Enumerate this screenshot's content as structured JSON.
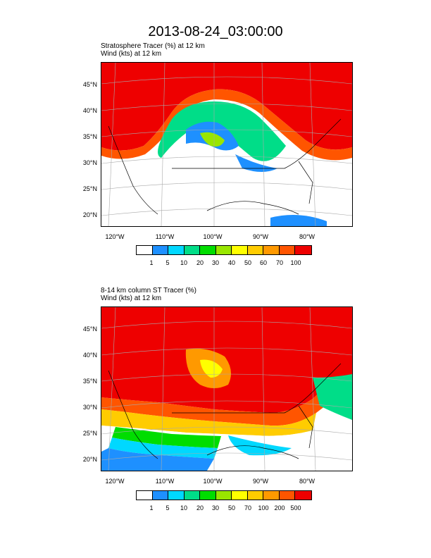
{
  "title": "2013-08-24_03:00:00",
  "panel1": {
    "line1": "Stratosphere Tracer   (%)     at   12 km",
    "line2": "Wind   (kts)     at   12 km",
    "colorbar": [
      "1",
      "5",
      "10",
      "20",
      "30",
      "40",
      "50",
      "60",
      "70",
      "100"
    ]
  },
  "panel2": {
    "line1": "8-14 km column ST Tracer   (%)",
    "line2": "Wind   (kts)     at   12 km",
    "colorbar": [
      "1",
      "5",
      "10",
      "20",
      "30",
      "50",
      "70",
      "100",
      "200",
      "500"
    ]
  },
  "lat_labels": [
    "45°N",
    "40°N",
    "35°N",
    "30°N",
    "25°N",
    "20°N"
  ],
  "lon_labels": [
    "120°W",
    "110°W",
    "100°W",
    "90°W",
    "80°W"
  ],
  "colors": [
    "#ffffff",
    "#1e90ff",
    "#00d8ff",
    "#00dd88",
    "#00dd00",
    "#99e600",
    "#ffff00",
    "#ffcc00",
    "#ff9900",
    "#ff5500",
    "#ee0000"
  ]
}
